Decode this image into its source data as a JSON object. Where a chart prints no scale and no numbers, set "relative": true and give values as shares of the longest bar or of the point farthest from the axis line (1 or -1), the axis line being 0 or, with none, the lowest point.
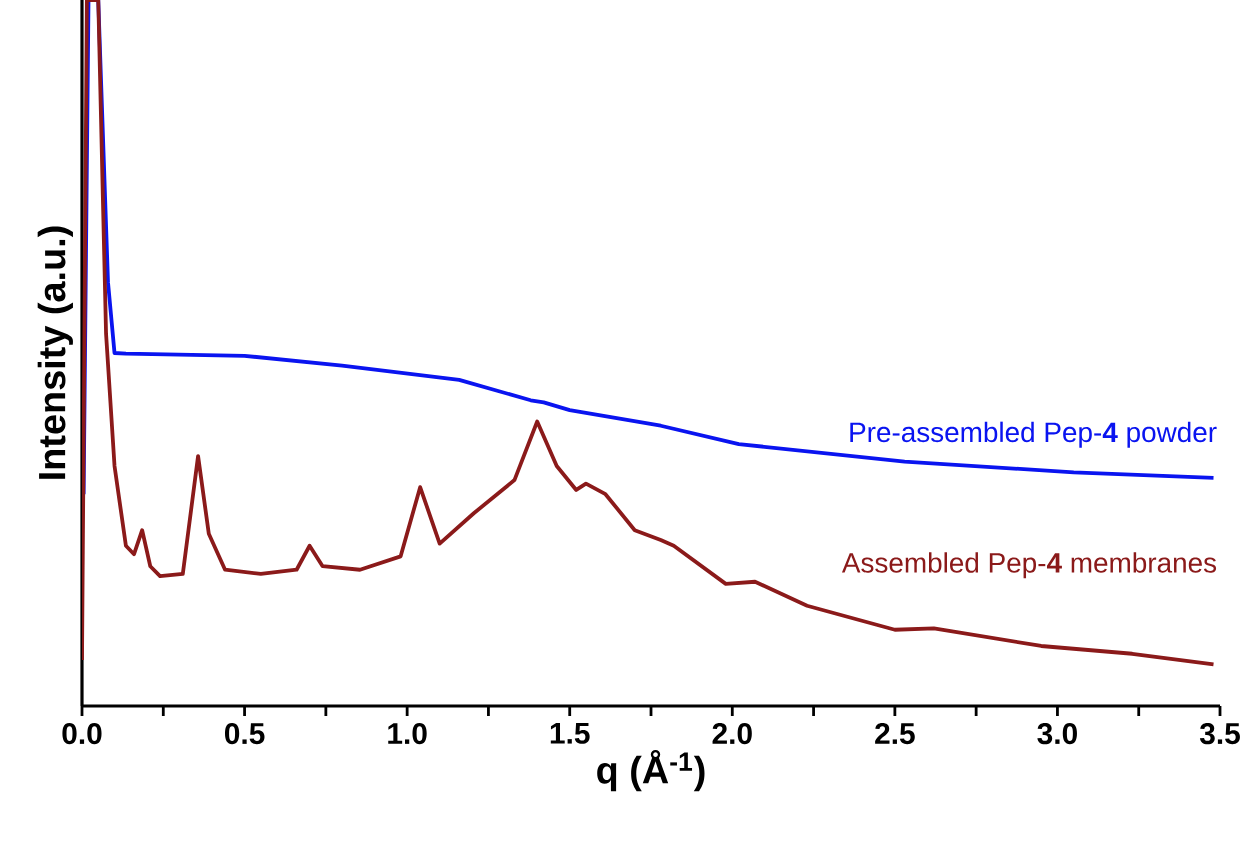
{
  "chart_data": {
    "type": "line",
    "xlabel": "q (Å$^{-1}$)",
    "ylabel": "Intensity (a.u.)",
    "relative": true,
    "xlim": [
      0,
      3.5
    ],
    "xticks": [
      {
        "value": 0,
        "label": "0.0"
      },
      {
        "value": 0.25,
        "label": null
      },
      0.5,
      {
        "value": 0.75,
        "label": null
      },
      {
        "value": 1,
        "label": "1.0"
      },
      {
        "value": 1.25,
        "label": null
      },
      1.5,
      {
        "value": 1.75,
        "label": null
      },
      {
        "value": 2,
        "label": "2.0"
      },
      {
        "value": 2.25,
        "label": null
      },
      2.5,
      {
        "value": 2.75,
        "label": null
      },
      {
        "value": 3,
        "label": "3.0"
      },
      {
        "value": 3.25,
        "label": null
      },
      3.5
    ],
    "tick_labels": "x",
    "grid": false,
    "legend": false,
    "marker": "none",
    "line_style": "solid",
    "series": [
      {
        "name": "Pre-assembled Pep-**4** powder",
        "color": "#0a14f0",
        "x": [
          0.005,
          0.02,
          0.05,
          0.08,
          0.1,
          0.135,
          0.5,
          0.8,
          1.16,
          1.38,
          1.42,
          1.5,
          1.78,
          2.02,
          2.53,
          3.05,
          3.48
        ],
        "values": [
          0.3,
          1.0,
          1.0,
          0.6,
          0.5,
          0.499,
          0.496,
          0.482,
          0.462,
          0.433,
          0.43,
          0.419,
          0.397,
          0.371,
          0.346,
          0.331,
          0.323
        ]
      },
      {
        "name": "Assembled Pep-**4** membranes",
        "color": "#8b1a1a",
        "x": [
          0.0,
          0.015,
          0.03,
          0.05,
          0.074,
          0.1,
          0.135,
          0.16,
          0.185,
          0.21,
          0.24,
          0.31,
          0.357,
          0.39,
          0.44,
          0.55,
          0.66,
          0.7,
          0.74,
          0.855,
          0.98,
          1.04,
          1.1,
          1.205,
          1.33,
          1.4,
          1.46,
          1.52,
          1.55,
          1.61,
          1.7,
          1.78,
          1.82,
          1.98,
          2.07,
          2.23,
          2.5,
          2.62,
          2.95,
          3.23,
          3.48
        ],
        "values": [
          0.065,
          1.0,
          1.0,
          1.0,
          0.527,
          0.34,
          0.227,
          0.215,
          0.249,
          0.198,
          0.184,
          0.187,
          0.354,
          0.244,
          0.193,
          0.187,
          0.193,
          0.227,
          0.198,
          0.193,
          0.212,
          0.31,
          0.23,
          0.273,
          0.32,
          0.403,
          0.34,
          0.306,
          0.315,
          0.3,
          0.249,
          0.235,
          0.227,
          0.173,
          0.176,
          0.142,
          0.108,
          0.11,
          0.085,
          0.074,
          0.059
        ]
      }
    ]
  }
}
